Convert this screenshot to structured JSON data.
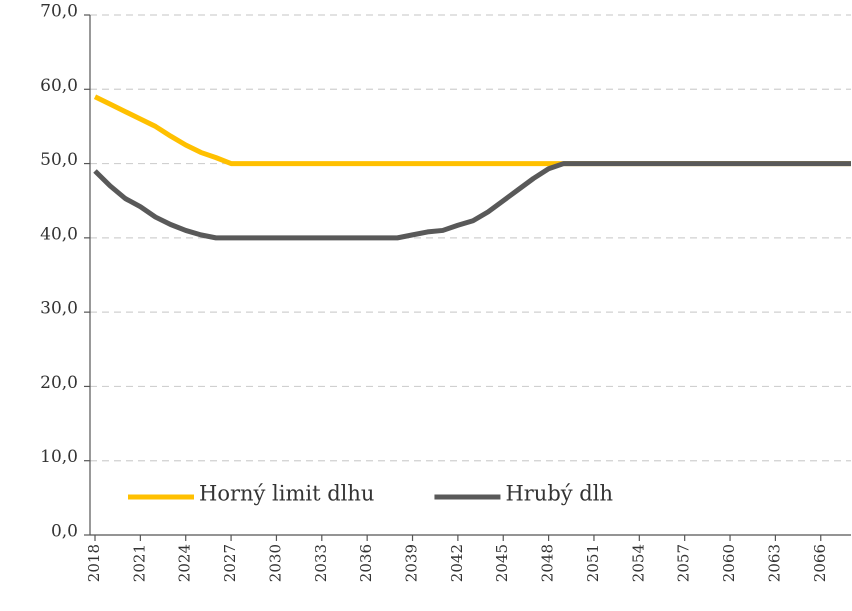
{
  "chart_data": {
    "type": "line",
    "categories": [
      "2018",
      null,
      null,
      "2021",
      null,
      null,
      "2024",
      null,
      null,
      "2027",
      null,
      null,
      "2030",
      null,
      null,
      "2033",
      null,
      null,
      "2036",
      null,
      null,
      "2039",
      null,
      null,
      "2042",
      null,
      null,
      "2045",
      null,
      null,
      "2048",
      null,
      null,
      "2051",
      null,
      null,
      "2054",
      null,
      null,
      "2057",
      null,
      null,
      "2060",
      null,
      null,
      "2063",
      null,
      null,
      "2066",
      null,
      null
    ],
    "series": [
      {
        "name": "Horný limit dlhu",
        "color": "#FFC000",
        "values": [
          59,
          58,
          57,
          56,
          55,
          53.7,
          52.5,
          51.5,
          50.8,
          50,
          50,
          50,
          50,
          50,
          50,
          50,
          50,
          50,
          50,
          50,
          50,
          50,
          50,
          50,
          50,
          50,
          50,
          50,
          50,
          50,
          50,
          50,
          50,
          50,
          50,
          50,
          50,
          50,
          50,
          50,
          50,
          50,
          50,
          50,
          50,
          50,
          50,
          50,
          50,
          50,
          50
        ]
      },
      {
        "name": "Hrubý dlh",
        "color": "#595959",
        "values": [
          49,
          47,
          45.3,
          44.2,
          42.8,
          41.8,
          41,
          40.4,
          40,
          40,
          40,
          40,
          40,
          40,
          40,
          40,
          40,
          40,
          40,
          40,
          40,
          40.4,
          40.8,
          41,
          41.7,
          42.3,
          43.5,
          45,
          46.5,
          48,
          49.3,
          50,
          50,
          50,
          50,
          50,
          50,
          50,
          50,
          50,
          50,
          50,
          50,
          50,
          50,
          50,
          50,
          50,
          50,
          50,
          50
        ]
      }
    ],
    "ylim": [
      0,
      70
    ],
    "yticks": [
      {
        "value": 0,
        "label": "0,0"
      },
      {
        "value": 10,
        "label": "10,0"
      },
      {
        "value": 20,
        "label": "20,0"
      },
      {
        "value": 30,
        "label": "30,0"
      },
      {
        "value": 40,
        "label": "40,0"
      },
      {
        "value": 50,
        "label": "50,0"
      },
      {
        "value": 60,
        "label": "60,0"
      },
      {
        "value": 70,
        "label": "70,0"
      }
    ],
    "grid": true,
    "legend": "bottom-left"
  }
}
